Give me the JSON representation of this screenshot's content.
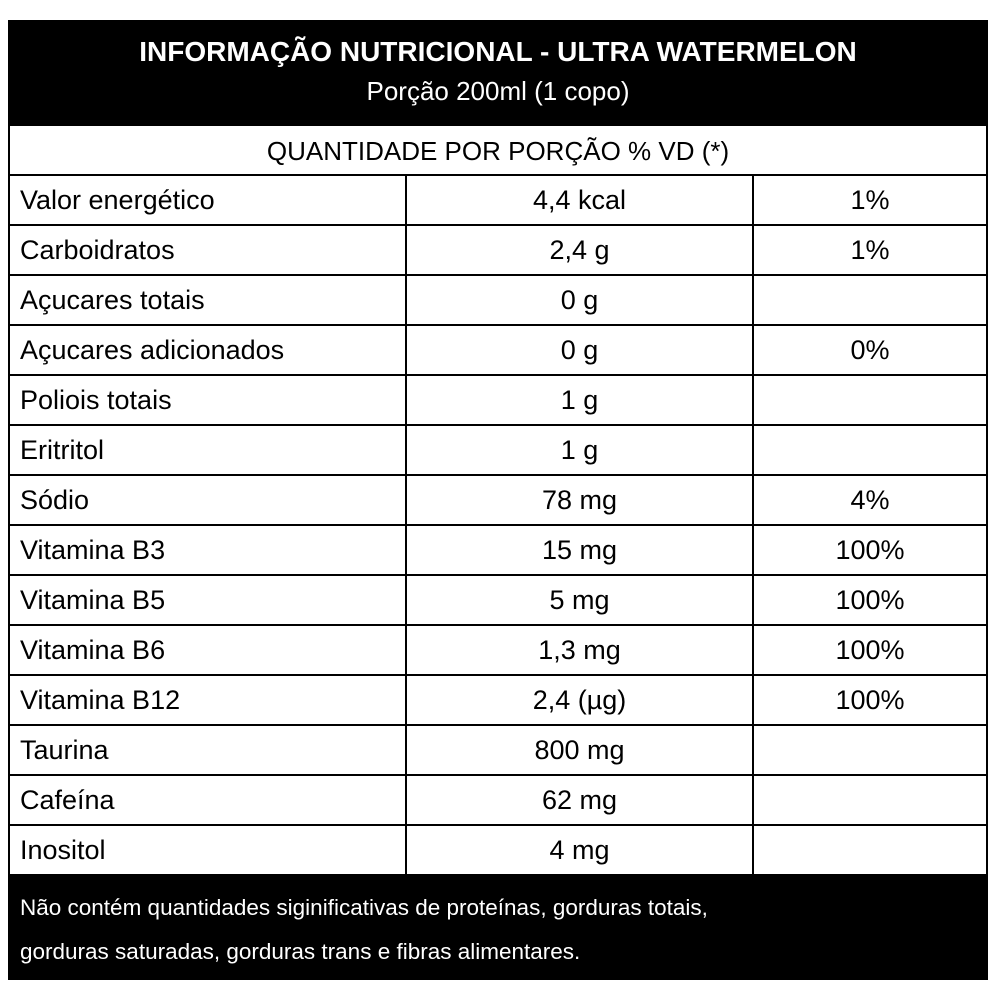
{
  "header": {
    "title": "INFORMAÇÃO NUTRICIONAL - ULTRA WATERMELON",
    "subtitle": "Porção 200ml (1 copo)"
  },
  "table": {
    "column_header": "QUANTIDADE POR PORÇÃO % VD (*)",
    "rows": [
      [
        "Valor energético",
        "4,4 kcal",
        "1%"
      ],
      [
        "Carboidratos",
        "2,4 g",
        "1%"
      ],
      [
        "Açucares totais",
        "0 g",
        null
      ],
      [
        "Açucares adicionados",
        "0 g",
        "0%"
      ],
      [
        "Poliois totais",
        "1 g",
        null
      ],
      [
        "Eritritol",
        "1 g",
        null
      ],
      [
        "Sódio",
        "78 mg",
        "4%"
      ],
      [
        "Vitamina B3",
        "15 mg",
        "100%"
      ],
      [
        "Vitamina B5",
        "5 mg",
        "100%"
      ],
      [
        "Vitamina B6",
        "1,3 mg",
        "100%"
      ],
      [
        "Vitamina B12",
        "2,4 (µg)",
        "100%"
      ],
      [
        "Taurina",
        "800 mg",
        null
      ],
      [
        "Cafeína",
        "62 mg",
        null
      ],
      [
        "Inositol",
        "4 mg",
        null
      ]
    ]
  },
  "footer": {
    "lines": [
      "Não contém quantidades siginificativas de proteínas, gorduras totais,",
      "gorduras saturadas, gorduras trans e fibras alimentares."
    ]
  }
}
